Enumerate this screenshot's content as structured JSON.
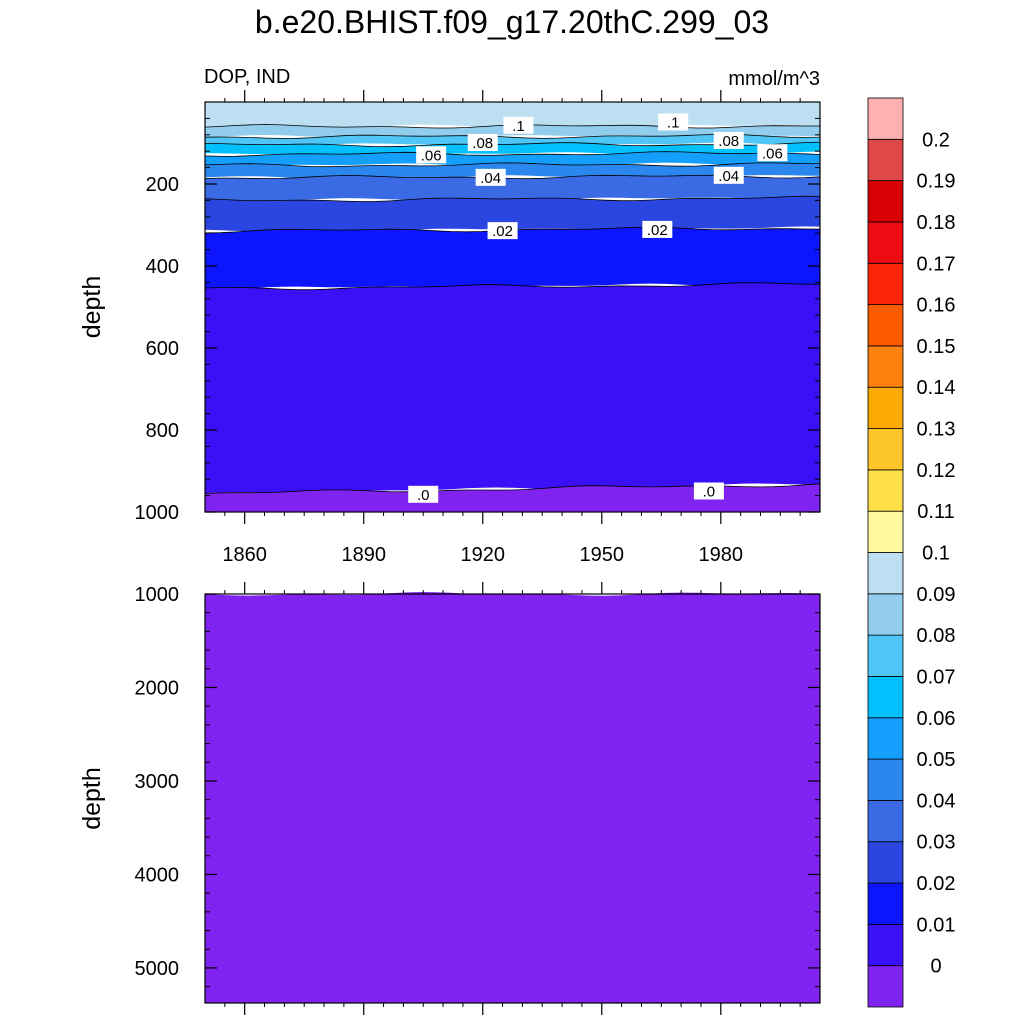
{
  "title": "b.e20.BHIST.f09_g17.20thC.299_03",
  "colors": [
    "#8023f0",
    "#3b10f7",
    "#0c15fb",
    "#2b46e0",
    "#3b6be4",
    "#2b86ee",
    "#139ffb",
    "#01c0fb",
    "#4fc6f6",
    "#92cdee",
    "#bce0f2",
    "#fff89f",
    "#ffe048",
    "#fcc62b",
    "#fdaa05",
    "#ff8210",
    "#fd5b00",
    "#ff2509",
    "#ef0b12",
    "#d70002",
    "#e04747",
    "#ffb1b1"
  ],
  "chart_data": [
    {
      "type": "contour",
      "left_label": "DOP, IND",
      "right_label": "mmol/m^3",
      "ylabel": "depth",
      "xlim": [
        1850,
        2005
      ],
      "ylim": [
        1000,
        0
      ],
      "x_ticks": [
        1860,
        1890,
        1920,
        1950,
        1980
      ],
      "y_ticks": [
        200,
        400,
        600,
        800,
        1000
      ],
      "bands": [
        {
          "level": "0.1",
          "top": 0,
          "bottom": 60
        },
        {
          "level": "0.09",
          "top": 60,
          "bottom": 85
        },
        {
          "level": "0.08",
          "top": 85,
          "bottom": 105
        },
        {
          "level": "0.07",
          "top": 105,
          "bottom": 128
        },
        {
          "level": "0.06",
          "top": 128,
          "bottom": 155
        },
        {
          "level": "0.05",
          "top": 155,
          "bottom": 185
        },
        {
          "level": "0.04",
          "top": 185,
          "bottom": 240
        },
        {
          "level": "0.03",
          "top": 240,
          "bottom": 315
        },
        {
          "level": "0.02",
          "top": 315,
          "bottom": 455
        },
        {
          "level": "0.01",
          "top": 455,
          "bottom": 955
        },
        {
          "level": "0",
          "top": 955,
          "bottom": 1000
        }
      ],
      "contour_labels": [
        {
          "text": ".1",
          "x": 1929,
          "depth": 58
        },
        {
          "text": ".1",
          "x": 1968,
          "depth": 50
        },
        {
          "text": ".08",
          "x": 1920,
          "depth": 100
        },
        {
          "text": ".08",
          "x": 1982,
          "depth": 95
        },
        {
          "text": ".06",
          "x": 1907,
          "depth": 130
        },
        {
          "text": ".06",
          "x": 1993,
          "depth": 125
        },
        {
          "text": ".04",
          "x": 1922,
          "depth": 185
        },
        {
          "text": ".04",
          "x": 1982,
          "depth": 180
        },
        {
          "text": ".02",
          "x": 1925,
          "depth": 315
        },
        {
          "text": ".02",
          "x": 1964,
          "depth": 312
        },
        {
          "text": ".0",
          "x": 1905,
          "depth": 958
        },
        {
          "text": ".0",
          "x": 1977,
          "depth": 950
        }
      ]
    },
    {
      "type": "contour",
      "ylabel": "depth",
      "xlim": [
        1850,
        2005
      ],
      "ylim": [
        5375,
        1000
      ],
      "y_ticks": [
        1000,
        2000,
        3000,
        4000,
        5000
      ],
      "bands": [
        {
          "level": "0",
          "top": 1000,
          "bottom": 5375
        }
      ]
    },
    {
      "type": "colorbar",
      "levels": [
        "0",
        "0.01",
        "0.02",
        "0.03",
        "0.04",
        "0.05",
        "0.06",
        "0.07",
        "0.08",
        "0.09",
        "0.1",
        "0.11",
        "0.12",
        "0.13",
        "0.14",
        "0.15",
        "0.16",
        "0.17",
        "0.18",
        "0.19",
        "0.2"
      ]
    }
  ]
}
